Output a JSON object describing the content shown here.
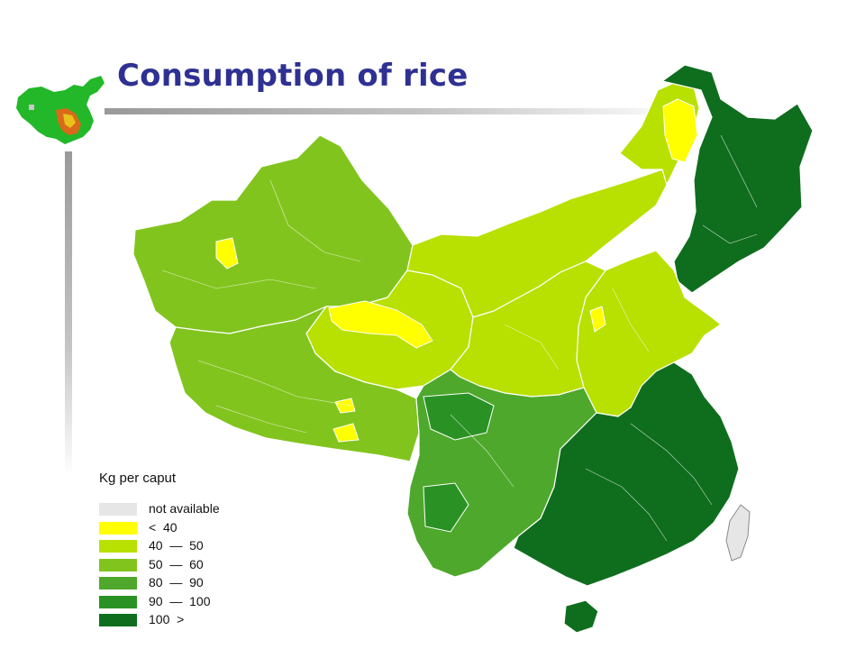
{
  "slide": {
    "title": "Consumption of rice"
  },
  "colors": {
    "title": "#2e3192",
    "not_available": "#e6e6e6",
    "lt40": "#ffff00",
    "r40_50": "#b8e000",
    "r50_60": "#82c41e",
    "r80_90": "#4ea82c",
    "r90_100": "#2a9224",
    "gt100": "#0f6e1e",
    "province_border": "#ffffff"
  },
  "legend": {
    "title": "Kg per caput",
    "items": [
      {
        "label": "not available",
        "color": "#e6e6e6"
      },
      {
        "label": "<  40",
        "color": "#ffff00"
      },
      {
        "label": "40  —  50",
        "color": "#b8e000"
      },
      {
        "label": "50  —  60",
        "color": "#82c41e"
      },
      {
        "label": "80  —  90",
        "color": "#4ea82c"
      },
      {
        "label": "90  —  100",
        "color": "#2a9224"
      },
      {
        "label": "100  >",
        "color": "#0f6e1e"
      }
    ]
  }
}
